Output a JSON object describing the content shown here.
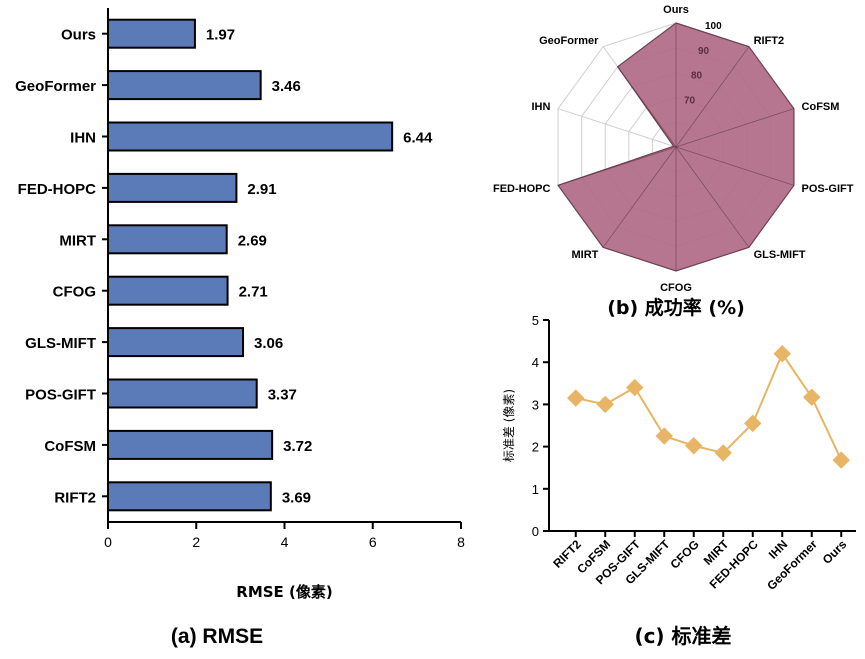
{
  "chart_data": [
    {
      "id": "rmse",
      "type": "bar",
      "orientation": "horizontal",
      "caption": "(a) RMSE",
      "xlabel": "RMSE (像素)",
      "ylabel": "",
      "xlim": [
        0,
        8
      ],
      "xticks": [
        0,
        2,
        4,
        6,
        8
      ],
      "categories": [
        "Ours",
        "GeoFormer",
        "IHN",
        "FED-HOPC",
        "MIRT",
        "CFOG",
        "GLS-MIFT",
        "POS-GIFT",
        "CoFSM",
        "RIFT2"
      ],
      "values": [
        1.97,
        3.46,
        6.44,
        2.91,
        2.69,
        2.71,
        3.06,
        3.37,
        3.72,
        3.69
      ],
      "value_labels": [
        "1.97",
        "3.46",
        "6.44",
        "2.91",
        "2.69",
        "2.71",
        "3.06",
        "3.37",
        "3.72",
        "3.69"
      ],
      "bar_color": "#5b7ab8",
      "grid": false
    },
    {
      "id": "success",
      "type": "radar",
      "caption": "(b) 成功率 (%)",
      "categories": [
        "Ours",
        "RIFT2",
        "CoFSM",
        "POS-GIFT",
        "GLS-MIFT",
        "CFOG",
        "MIRT",
        "FED-HOPC",
        "IHN",
        "GeoFormer"
      ],
      "values": [
        100,
        100,
        100,
        100,
        100,
        100,
        100,
        100,
        51,
        90
      ],
      "range": [
        50,
        100
      ],
      "ring_labels": [
        "70",
        "80",
        "90",
        "100"
      ],
      "fill_color": "#b06a85",
      "grid": true
    },
    {
      "id": "std",
      "type": "line",
      "caption": "(c) 标准差",
      "ylabel": "标准差 (像素)",
      "xlabel": "",
      "ylim": [
        0,
        5
      ],
      "yticks": [
        0,
        1,
        2,
        3,
        4,
        5
      ],
      "categories": [
        "RIFT2",
        "CoFSM",
        "POS-GIFT",
        "GLS-MIFT",
        "CFOG",
        "MIRT",
        "FED-HOPC",
        "IHN",
        "GeoFormer",
        "Ours"
      ],
      "values": [
        3.15,
        3.0,
        3.4,
        2.25,
        2.02,
        1.85,
        2.55,
        4.2,
        3.17,
        1.68
      ],
      "line_color": "#e8b465",
      "marker": "diamond",
      "grid": false
    }
  ]
}
